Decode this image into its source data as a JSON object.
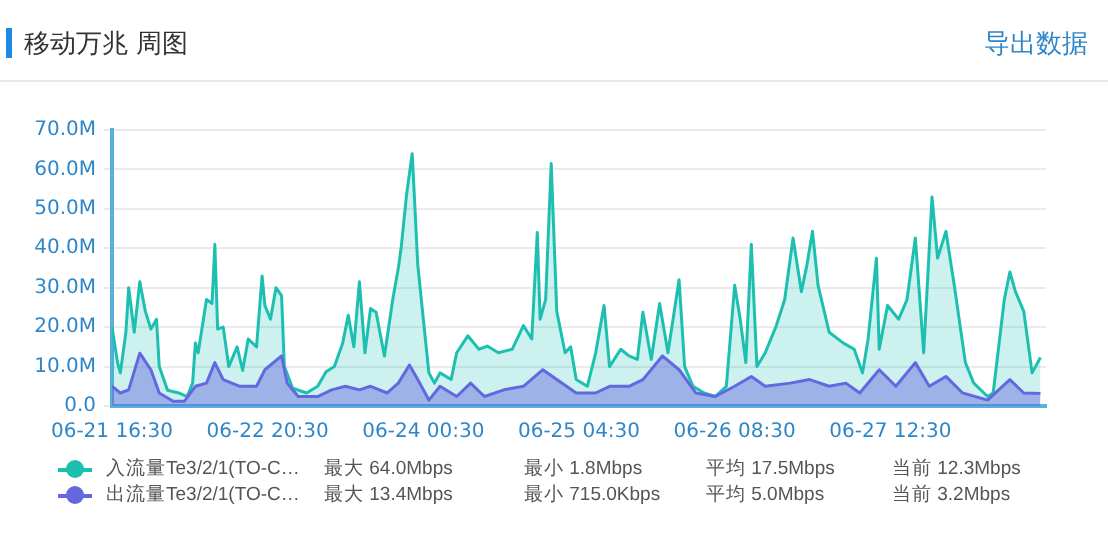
{
  "chart_data": {
    "type": "area",
    "title": "移动万兆 周图",
    "xlim": [
      "--06-21T16:30",
      "--06-28T16:30"
    ],
    "xticks": [
      {
        "value": "--06-21T16:30",
        "label": "06-21 16:30"
      },
      {
        "value": "--06-22T20:30",
        "label": "06-22 20:30"
      },
      {
        "value": "--06-24T00:30",
        "label": "06-24 00:30"
      },
      {
        "value": "--06-25T04:30",
        "label": "06-25 04:30"
      },
      {
        "value": "--06-26T08:30",
        "label": "06-26 08:30"
      },
      {
        "value": "--06-27T12:30",
        "label": "06-27 12:30"
      }
    ],
    "ylim": [
      0,
      70
    ],
    "yticks": [
      {
        "value": 0,
        "label": "0.0"
      },
      {
        "value": 10,
        "label": "10.0M"
      },
      {
        "value": 20,
        "label": "20.0M"
      },
      {
        "value": 30,
        "label": "30.0M"
      },
      {
        "value": 40,
        "label": "40.0M"
      },
      {
        "value": 50,
        "label": "50.0M"
      },
      {
        "value": 60,
        "label": "60.0M"
      },
      {
        "value": 70,
        "label": "70.0M"
      }
    ],
    "grid": "y",
    "legend": "bottom",
    "series": [
      {
        "name": "入流量Te3/2/1(TO-C…",
        "color": "#1dc0b0",
        "x": [
          "--06-21T16:30",
          "--06-21T17:30",
          "--06-21T18:00",
          "--06-21T19:00",
          "--06-21T19:30",
          "--06-21T20:30",
          "--06-21T21:30",
          "--06-21T22:30",
          "--06-21T23:30",
          "--06-22T00:30",
          "--06-22T01:00",
          "--06-22T02:30",
          "--06-22T04:30",
          "--06-22T06:00",
          "--06-22T07:00",
          "--06-22T07:30",
          "--06-22T08:00",
          "--06-22T09:30",
          "--06-22T10:30",
          "--06-22T11:00",
          "--06-22T11:30",
          "--06-22T12:30",
          "--06-22T13:30",
          "--06-22T15:00",
          "--06-22T16:00",
          "--06-22T17:00",
          "--06-22T18:30",
          "--06-22T19:30",
          "--06-22T20:00",
          "--06-22T21:00",
          "--06-22T22:00",
          "--06-22T23:00",
          "--06-22T23:30",
          "--06-23T01:00",
          "--06-23T03:30",
          "--06-23T05:30",
          "--06-23T07:00",
          "--06-23T08:30",
          "--06-23T10:00",
          "--06-23T11:00",
          "--06-23T12:00",
          "--06-23T13:00",
          "--06-23T14:00",
          "--06-23T15:00",
          "--06-23T16:00",
          "--06-23T17:30",
          "--06-23T19:00",
          "--06-23T20:00",
          "--06-23T20:30",
          "--06-23T21:30",
          "--06-23T22:30",
          "--06-23T23:30",
          "--06-24T00:30",
          "--06-24T01:30",
          "--06-24T02:30",
          "--06-24T03:30",
          "--06-24T05:30",
          "--06-24T06:30",
          "--06-24T08:30",
          "--06-24T10:30",
          "--06-24T12:00",
          "--06-24T14:00",
          "--06-24T16:30",
          "--06-24T18:30",
          "--06-24T20:00",
          "--06-24T21:00",
          "--06-24T21:30",
          "--06-24T22:30",
          "--06-24T23:30",
          "--06-25T00:30",
          "--06-25T02:00",
          "--06-25T03:00",
          "--06-25T04:00",
          "--06-25T06:00",
          "--06-25T07:30",
          "--06-25T09:00",
          "--06-25T10:00",
          "--06-25T12:00",
          "--06-25T13:30",
          "--06-25T15:00",
          "--06-25T16:00",
          "--06-25T17:30",
          "--06-25T19:00",
          "--06-25T20:30",
          "--06-25T22:30",
          "--06-25T23:30",
          "--06-26T01:00",
          "--06-26T03:00",
          "--06-26T05:00",
          "--06-26T07:00",
          "--06-26T08:30",
          "--06-26T09:30",
          "--06-26T10:30",
          "--06-26T11:30",
          "--06-26T12:30",
          "--06-26T14:00",
          "--06-26T16:00",
          "--06-26T17:30",
          "--06-26T19:00",
          "--06-26T20:30",
          "--06-26T21:30",
          "--06-26T22:30",
          "--06-26T23:30",
          "--06-27T01:30",
          "--06-27T04:00",
          "--06-27T06:00",
          "--06-27T07:30",
          "--06-27T08:30",
          "--06-27T10:00",
          "--06-27T10:30",
          "--06-27T12:00",
          "--06-27T14:00",
          "--06-27T15:30",
          "--06-27T17:00",
          "--06-27T18:30",
          "--06-27T20:00",
          "--06-27T21:00",
          "--06-27T22:30",
          "--06-28T00:00",
          "--06-28T02:00",
          "--06-28T03:30",
          "--06-28T06:00",
          "--06-28T07:00",
          "--06-28T09:00",
          "--06-28T10:00",
          "--06-28T11:00",
          "--06-28T12:30",
          "--06-28T14:00",
          "--06-28T15:30"
        ],
        "values": [
          20,
          11,
          8.4,
          18.7,
          30,
          18.7,
          31.5,
          24,
          19.5,
          22,
          10,
          4,
          3.3,
          2.4,
          5.8,
          16,
          13.5,
          27,
          26,
          41,
          19.5,
          20,
          10,
          15,
          9,
          17,
          15,
          33,
          25.5,
          22,
          30,
          28,
          10,
          4.5,
          3.3,
          5,
          8.7,
          10,
          16,
          23,
          15,
          31.5,
          13.5,
          24.7,
          23.8,
          12.7,
          27,
          35,
          40,
          53.8,
          64,
          35.8,
          22,
          8.4,
          5.8,
          8.4,
          6.7,
          13.5,
          17.8,
          14.4,
          15.2,
          13.5,
          14.4,
          20.4,
          17,
          44,
          22,
          27,
          61.5,
          24,
          13.5,
          15,
          6.7,
          5,
          13.5,
          25.5,
          10,
          14.4,
          12.7,
          11.8,
          23.8,
          11.8,
          26,
          13.5,
          32,
          10,
          5,
          3.3,
          2.4,
          5,
          30.6,
          22,
          11,
          41,
          10,
          13.5,
          20.4,
          27,
          42.6,
          29,
          35.8,
          44.3,
          30.6,
          18.7,
          16,
          14.4,
          8.4,
          17,
          37.5,
          14.4,
          25.5,
          22,
          27,
          42.6,
          13.5,
          53,
          37.5,
          44.3,
          30.6,
          11,
          5.8,
          2.4,
          3.3,
          27,
          34,
          29,
          24,
          8.4,
          12.3
        ]
      },
      {
        "name": "出流量Te3/2/1(TO-C…",
        "color": "#6468e0",
        "x": [
          "--06-21T16:30",
          "--06-21T18:00",
          "--06-21T19:30",
          "--06-21T21:30",
          "--06-21T23:30",
          "--06-22T01:00",
          "--06-22T03:30",
          "--06-22T05:30",
          "--06-22T07:30",
          "--06-22T09:30",
          "--06-22T11:00",
          "--06-22T12:30",
          "--06-22T15:30",
          "--06-22T18:30",
          "--06-22T20:00",
          "--06-22T23:00",
          "--06-23T00:00",
          "--06-23T02:00",
          "--06-23T05:30",
          "--06-23T08:00",
          "--06-23T10:30",
          "--06-23T13:00",
          "--06-23T15:00",
          "--06-23T18:00",
          "--06-23T20:00",
          "--06-23T22:00",
          "--06-23T23:30",
          "--06-24T01:30",
          "--06-24T03:30",
          "--06-24T06:30",
          "--06-24T09:00",
          "--06-24T11:30",
          "--06-24T15:00",
          "--06-24T18:30",
          "--06-24T22:00",
          "--06-25T00:30",
          "--06-25T04:00",
          "--06-25T07:30",
          "--06-25T10:00",
          "--06-25T13:30",
          "--06-25T16:00",
          "--06-25T19:30",
          "--06-25T22:30",
          "--06-26T01:30",
          "--06-26T05:00",
          "--06-26T08:30",
          "--06-26T11:30",
          "--06-26T14:00",
          "--06-26T18:30",
          "--06-26T22:00",
          "--06-27T01:30",
          "--06-27T04:30",
          "--06-27T07:00",
          "--06-27T10:30",
          "--06-27T13:30",
          "--06-27T17:00",
          "--06-27T19:30",
          "--06-27T22:30",
          "--06-28T01:30",
          "--06-28T06:00",
          "--06-28T10:00",
          "--06-28T12:30",
          "--06-28T15:30"
        ],
        "values": [
          5,
          3.3,
          4.1,
          13.4,
          9.2,
          3.3,
          1.2,
          1.2,
          5,
          5.8,
          11,
          6.7,
          5,
          5,
          9.2,
          12.7,
          5.8,
          2.4,
          2.4,
          4.1,
          5,
          4.1,
          5,
          3.3,
          5.8,
          10.4,
          6.7,
          1.5,
          5,
          2.4,
          5.8,
          2.4,
          4.1,
          5,
          9.2,
          6.7,
          3.3,
          3.3,
          5,
          5,
          6.7,
          12.7,
          9.2,
          3.3,
          2.4,
          5,
          7.5,
          5,
          5.8,
          6.7,
          5,
          5.8,
          3.3,
          9.2,
          5,
          11,
          5,
          7.5,
          3.3,
          1.5,
          6.7,
          3.3,
          3.2
        ]
      }
    ],
    "annotations": [
      "导出数据",
      "最大 64.0Mbps",
      "最小 1.8Mbps",
      "平均 17.5Mbps",
      "当前 12.3Mbps",
      "最大 13.4Mbps",
      "最小 715.0Kbps",
      "平均 5.0Mbps",
      "当前 3.2Mbps"
    ]
  }
}
